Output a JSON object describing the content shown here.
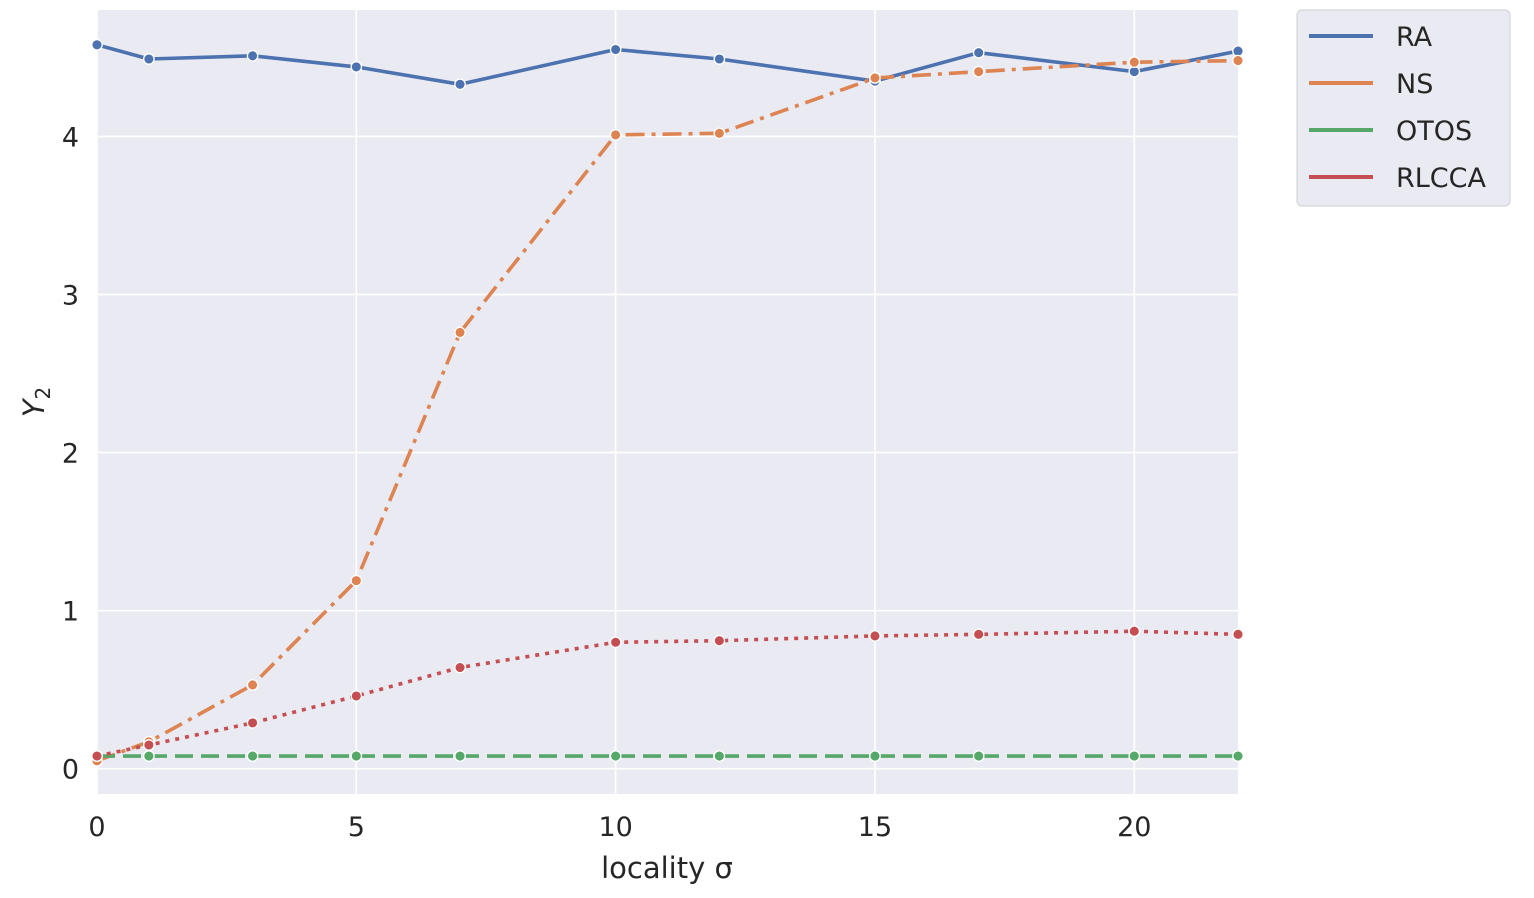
{
  "chart_data": {
    "type": "line",
    "xlabel": "locality σ",
    "ylabel": "Y",
    "ylabel_subscript": "2",
    "xlim": [
      0,
      22
    ],
    "ylim": [
      -0.16,
      4.8
    ],
    "xticks": [
      0,
      5,
      10,
      15,
      20
    ],
    "yticks": [
      0,
      1,
      2,
      3,
      4
    ],
    "grid": true,
    "background": "#eaeaf2",
    "legend_position": "outside-top-right",
    "x": [
      0,
      1,
      3,
      5,
      7,
      10,
      12,
      15,
      17,
      20,
      22
    ],
    "series": [
      {
        "name": "RA",
        "color": "#4c72b0",
        "linestyle": "solid",
        "values": [
          4.58,
          4.49,
          4.51,
          4.44,
          4.33,
          4.55,
          4.49,
          4.35,
          4.53,
          4.41,
          4.54
        ]
      },
      {
        "name": "NS",
        "color": "#dd8452",
        "linestyle": "dashdot",
        "values": [
          0.05,
          0.17,
          0.53,
          1.19,
          2.76,
          4.01,
          4.02,
          4.37,
          4.41,
          4.47,
          4.48
        ]
      },
      {
        "name": "OTOS",
        "color": "#55a868",
        "linestyle": "dashed",
        "values": [
          0.08,
          0.08,
          0.08,
          0.08,
          0.08,
          0.08,
          0.08,
          0.08,
          0.08,
          0.08,
          0.08
        ]
      },
      {
        "name": "RLCCA",
        "color": "#c44e52",
        "linestyle": "dotted",
        "values": [
          0.08,
          0.15,
          0.29,
          0.46,
          0.64,
          0.8,
          0.81,
          0.84,
          0.85,
          0.87,
          0.85
        ]
      }
    ]
  }
}
